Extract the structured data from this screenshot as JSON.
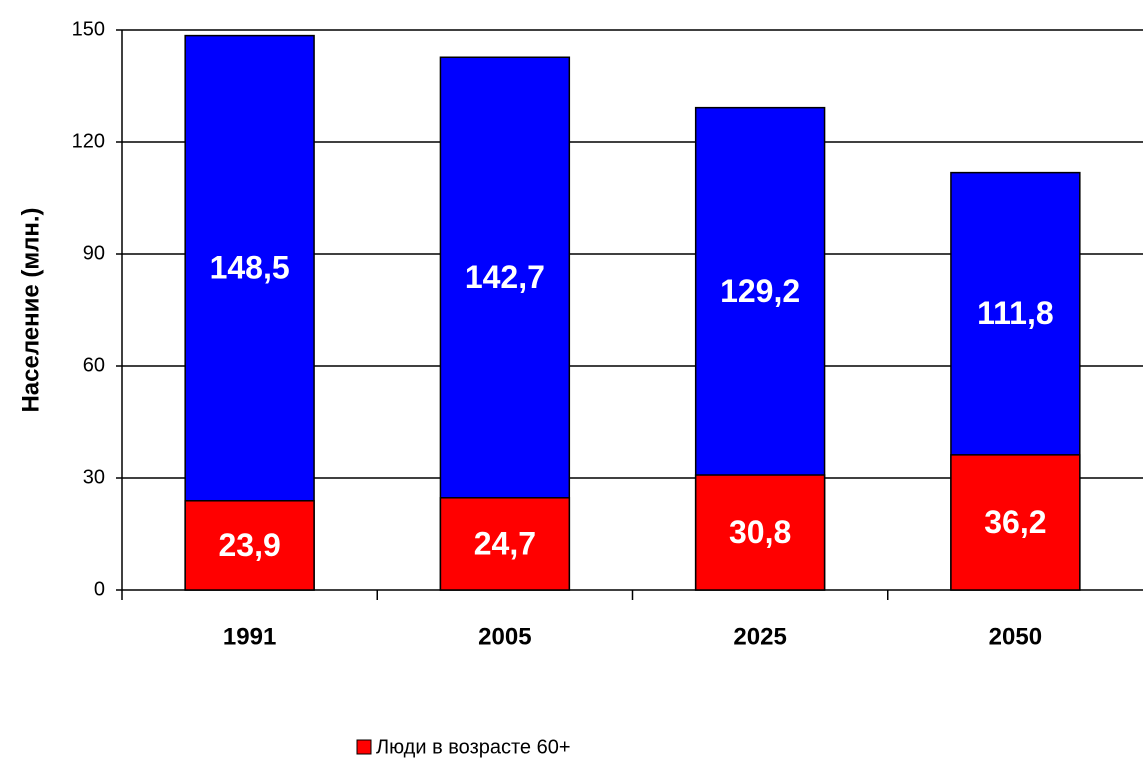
{
  "chart_data": {
    "type": "bar",
    "categories": [
      "1991",
      "2005",
      "2025",
      "2050"
    ],
    "series": [
      {
        "color": "#0000ff",
        "values": [
          148.5,
          142.7,
          129.2,
          111.8
        ],
        "value_labels": [
          "148,5",
          "142,7",
          "129,2",
          "111,8"
        ]
      },
      {
        "name": "Люди в возрасте 60+",
        "color": "#ff0000",
        "values": [
          23.9,
          24.7,
          30.8,
          36.2
        ],
        "value_labels": [
          "23,9",
          "24,7",
          "30,8",
          "36,2"
        ]
      }
    ],
    "ylabel": "Население (млн.)",
    "ylim": [
      0,
      150
    ],
    "yticks": [
      0,
      30,
      60,
      90,
      120,
      150
    ],
    "grid": true,
    "legend": "bottom"
  }
}
